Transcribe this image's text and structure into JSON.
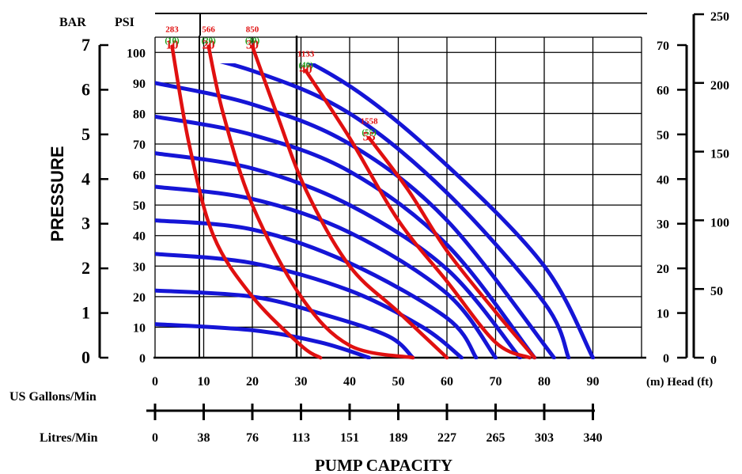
{
  "chart_data": {
    "type": "line",
    "title": "",
    "xlabel": "PUMP CAPACITY",
    "ylabel": "PRESSURE",
    "x_axes": [
      {
        "label": "US Gallons/Min",
        "ticks": [
          0,
          10,
          20,
          30,
          40,
          50,
          60,
          70,
          80,
          90
        ],
        "tick_labels": [
          "0",
          "10",
          "20",
          "30",
          "40",
          "50",
          "60",
          "70",
          "80",
          "90"
        ]
      },
      {
        "label": "Litres/Min",
        "ticks": [
          0,
          10,
          20,
          30,
          40,
          50,
          60,
          70,
          80,
          90
        ],
        "tick_labels": [
          "0",
          "38",
          "76",
          "113",
          "151",
          "189",
          "227",
          "265",
          "303",
          "340"
        ]
      }
    ],
    "y_axes": {
      "bar": {
        "label": "BAR",
        "tick_labels": [
          "0",
          "1",
          "2",
          "3",
          "4",
          "5",
          "6",
          "7"
        ]
      },
      "psi": {
        "label": "PSI",
        "ticks": [
          0,
          10,
          20,
          30,
          40,
          50,
          60,
          70,
          80,
          90,
          100
        ],
        "tick_labels": [
          "0",
          "10",
          "20",
          "30",
          "40",
          "50",
          "60",
          "70",
          "80",
          "90",
          "100"
        ]
      },
      "head_m": {
        "tick_labels": [
          "0",
          "10",
          "20",
          "30",
          "40",
          "50",
          "60",
          "70"
        ]
      },
      "head_ft": {
        "tick_labels": [
          "0",
          "50",
          "100",
          "150",
          "200",
          "250"
        ]
      },
      "right_label": "(m) Head (ft)"
    },
    "xlim": [
      0,
      100
    ],
    "ylim": [
      0,
      105
    ],
    "grid": true,
    "pressure_series": [
      {
        "values": [
          [
            0,
            11
          ],
          [
            20,
            9
          ],
          [
            34,
            5
          ],
          [
            44,
            0
          ]
        ]
      },
      {
        "values": [
          [
            0,
            22
          ],
          [
            20,
            20
          ],
          [
            35,
            14
          ],
          [
            48,
            7
          ],
          [
            53,
            0
          ]
        ]
      },
      {
        "values": [
          [
            0,
            34
          ],
          [
            20,
            31
          ],
          [
            40,
            22
          ],
          [
            55,
            10
          ],
          [
            63,
            0
          ]
        ]
      },
      {
        "values": [
          [
            0,
            45
          ],
          [
            20,
            42
          ],
          [
            40,
            31
          ],
          [
            60,
            13
          ],
          [
            66,
            0
          ]
        ]
      },
      {
        "values": [
          [
            0,
            56
          ],
          [
            20,
            52
          ],
          [
            40,
            41
          ],
          [
            60,
            21
          ],
          [
            70,
            0
          ]
        ]
      },
      {
        "values": [
          [
            0,
            67
          ],
          [
            20,
            62
          ],
          [
            40,
            50
          ],
          [
            60,
            29
          ],
          [
            75,
            0
          ]
        ]
      },
      {
        "values": [
          [
            0,
            79
          ],
          [
            20,
            73
          ],
          [
            40,
            61
          ],
          [
            60,
            37
          ],
          [
            78,
            0
          ]
        ]
      },
      {
        "values": [
          [
            0,
            90
          ],
          [
            20,
            83
          ],
          [
            40,
            70
          ],
          [
            60,
            45
          ],
          [
            82,
            0
          ]
        ]
      },
      {
        "values": [
          [
            0,
            102
          ],
          [
            20,
            94
          ],
          [
            40,
            80
          ],
          [
            60,
            54
          ],
          [
            80,
            18
          ],
          [
            85,
            0
          ]
        ]
      },
      {
        "values": [
          [
            0,
            114
          ],
          [
            20,
            105
          ],
          [
            40,
            89
          ],
          [
            60,
            63
          ],
          [
            80,
            30
          ],
          [
            90,
            0
          ]
        ]
      }
    ],
    "air_series": [
      {
        "scfm": "10",
        "litres": "283",
        "values": [
          [
            3.5,
            102
          ],
          [
            7,
            70
          ],
          [
            12,
            40
          ],
          [
            20,
            20
          ],
          [
            30,
            4
          ],
          [
            34,
            0
          ]
        ]
      },
      {
        "scfm": "20",
        "litres": "566",
        "values": [
          [
            11,
            102
          ],
          [
            14,
            80
          ],
          [
            20,
            50
          ],
          [
            30,
            20
          ],
          [
            40,
            4
          ],
          [
            53,
            0
          ]
        ]
      },
      {
        "scfm": "30",
        "litres": "850",
        "values": [
          [
            20,
            102
          ],
          [
            25,
            80
          ],
          [
            31,
            55
          ],
          [
            40,
            30
          ],
          [
            50,
            15
          ],
          [
            60,
            0
          ]
        ]
      },
      {
        "scfm": "40",
        "litres": "1133",
        "values": [
          [
            31,
            94
          ],
          [
            40,
            72
          ],
          [
            50,
            45
          ],
          [
            60,
            25
          ],
          [
            70,
            5
          ],
          [
            77,
            0
          ]
        ]
      },
      {
        "scfm": "55",
        "litres": "1558",
        "values": [
          [
            44,
            72
          ],
          [
            52,
            55
          ],
          [
            60,
            35
          ],
          [
            70,
            15
          ],
          [
            78,
            0
          ]
        ]
      }
    ]
  }
}
